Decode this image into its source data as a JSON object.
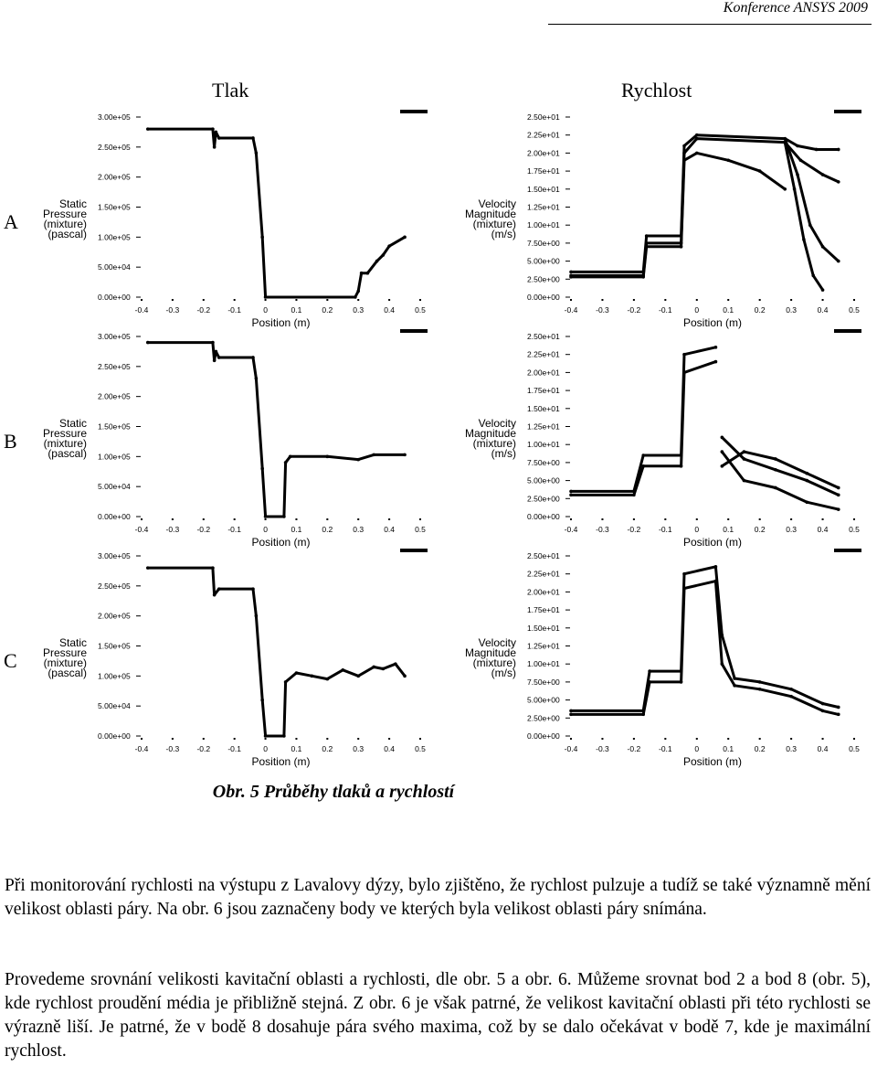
{
  "header": {
    "text": "Konference ANSYS 2009"
  },
  "columns": {
    "left": "Tlak",
    "right": "Rychlost"
  },
  "rows": [
    "A",
    "B",
    "C"
  ],
  "caption": "Obr. 5 Průběhy tlaků a rychlostí",
  "paragraphs": [
    "Při monitorování rychlosti na výstupu z Lavalovy dýzy, bylo zjištěno, že rychlost pulzuje a tudíž se také významně mění velikost oblasti páry. Na obr. 6 jsou zaznačeny body ve kterých byla velikost oblasti páry snímána.",
    "Provedeme srovnání velikosti kavitační oblasti a rychlosti, dle obr. 5 a obr. 6. Můžeme srovnat bod 2 a bod 8 (obr. 5), kde rychlost proudění média je přibližně stejná. Z obr. 6 je však patrné, že velikost kavitační oblasti při této rychlosti se výrazně liší. Je patrné, že v bodě 8 dosahuje pára svého maxima, což by se dalo očekávat v bodě 7, kde je maximální rychlost."
  ],
  "chart_data": [
    {
      "id": "A-pressure",
      "type": "scatter",
      "ylabel": [
        "Static",
        "Pressure",
        "(mixture)",
        "(pascal)"
      ],
      "xlabel": "Position (m)",
      "x_ticks": [
        "-0.4",
        "-0.3",
        "-0.2",
        "-0.1",
        "0",
        "0.1",
        "0.2",
        "0.3",
        "0.4",
        "0.5"
      ],
      "y_ticks": [
        "0.00e+00",
        "5.00e+04",
        "1.00e+05",
        "1.50e+05",
        "2.00e+05",
        "2.50e+05",
        "3.00e+05"
      ],
      "xlim": [
        -0.4,
        0.5
      ],
      "ylim": [
        0,
        300000
      ],
      "series": [
        {
          "points": [
            [
              -0.38,
              280000
            ],
            [
              -0.17,
              280000
            ],
            [
              -0.165,
              250000
            ],
            [
              -0.16,
              275000
            ],
            [
              -0.15,
              265000
            ],
            [
              -0.04,
              265000
            ],
            [
              -0.03,
              240000
            ],
            [
              -0.01,
              100000
            ],
            [
              0.0,
              0
            ],
            [
              0.29,
              0
            ],
            [
              0.3,
              10000
            ],
            [
              0.31,
              40000
            ],
            [
              0.33,
              40000
            ],
            [
              0.36,
              60000
            ],
            [
              0.38,
              70000
            ],
            [
              0.4,
              85000
            ],
            [
              0.45,
              100000
            ]
          ]
        }
      ]
    },
    {
      "id": "A-velocity",
      "type": "scatter",
      "ylabel": [
        "Velocity",
        "Magnitude",
        "(mixture)",
        "(m/s)"
      ],
      "xlabel": "Position (m)",
      "x_ticks": [
        "-0.4",
        "-0.3",
        "-0.2",
        "-0.1",
        "0",
        "0.1",
        "0.2",
        "0.3",
        "0.4",
        "0.5"
      ],
      "y_ticks": [
        "0.00e+00",
        "2.50e+00",
        "5.00e+00",
        "7.50e+00",
        "1.00e+01",
        "1.25e+01",
        "1.50e+01",
        "1.75e+01",
        "2.00e+01",
        "2.25e+01",
        "2.50e+01"
      ],
      "xlim": [
        -0.4,
        0.5
      ],
      "ylim": [
        0,
        25
      ],
      "series": [
        {
          "points": [
            [
              -0.4,
              3.5
            ],
            [
              -0.17,
              3.5
            ],
            [
              -0.16,
              8.5
            ],
            [
              -0.05,
              8.5
            ],
            [
              -0.04,
              21
            ],
            [
              0,
              22.5
            ],
            [
              0.28,
              22
            ],
            [
              0.32,
              21
            ],
            [
              0.38,
              20.5
            ],
            [
              0.45,
              20.5
            ]
          ]
        },
        {
          "points": [
            [
              -0.4,
              3
            ],
            [
              -0.17,
              3
            ],
            [
              -0.16,
              7.5
            ],
            [
              -0.05,
              7.5
            ],
            [
              -0.04,
              20
            ],
            [
              0,
              22
            ],
            [
              0.28,
              21.5
            ],
            [
              0.33,
              19
            ],
            [
              0.4,
              17
            ],
            [
              0.45,
              16
            ]
          ]
        },
        {
          "points": [
            [
              -0.4,
              2.8
            ],
            [
              -0.17,
              2.8
            ],
            [
              -0.16,
              7
            ],
            [
              -0.05,
              7
            ],
            [
              -0.04,
              19
            ],
            [
              0,
              20
            ],
            [
              0.1,
              19
            ],
            [
              0.2,
              17.5
            ],
            [
              0.28,
              15
            ]
          ]
        },
        {
          "points": [
            [
              0.28,
              22
            ],
            [
              0.32,
              17
            ],
            [
              0.36,
              10
            ],
            [
              0.4,
              7
            ],
            [
              0.45,
              5
            ]
          ]
        },
        {
          "points": [
            [
              0.28,
              21.5
            ],
            [
              0.31,
              15
            ],
            [
              0.34,
              8
            ],
            [
              0.37,
              3
            ],
            [
              0.4,
              1
            ]
          ]
        }
      ]
    },
    {
      "id": "B-pressure",
      "type": "scatter",
      "ylabel": [
        "Static",
        "Pressure",
        "(mixture)",
        "(pascal)"
      ],
      "xlabel": "Position (m)",
      "x_ticks": [
        "-0.4",
        "-0.3",
        "-0.2",
        "-0.1",
        "0",
        "0.1",
        "0.2",
        "0.3",
        "0.4",
        "0.5"
      ],
      "y_ticks": [
        "0.00e+00",
        "5.00e+04",
        "1.00e+05",
        "1.50e+05",
        "2.00e+05",
        "2.50e+05",
        "3.00e+05"
      ],
      "xlim": [
        -0.4,
        0.5
      ],
      "ylim": [
        0,
        300000
      ],
      "series": [
        {
          "points": [
            [
              -0.38,
              290000
            ],
            [
              -0.17,
              290000
            ],
            [
              -0.165,
              260000
            ],
            [
              -0.16,
              275000
            ],
            [
              -0.15,
              265000
            ],
            [
              -0.04,
              265000
            ],
            [
              -0.03,
              230000
            ],
            [
              -0.01,
              80000
            ],
            [
              0.0,
              0
            ],
            [
              0.06,
              0
            ],
            [
              0.065,
              90000
            ],
            [
              0.08,
              100000
            ],
            [
              0.2,
              100000
            ],
            [
              0.3,
              95000
            ],
            [
              0.35,
              103000
            ],
            [
              0.45,
              103000
            ]
          ]
        }
      ]
    },
    {
      "id": "B-velocity",
      "type": "scatter",
      "ylabel": [
        "Velocity",
        "Magnitude",
        "(mixture)",
        "(m/s)"
      ],
      "xlabel": "Position (m)",
      "x_ticks": [
        "-0.4",
        "-0.3",
        "-0.2",
        "-0.1",
        "0",
        "0.1",
        "0.2",
        "0.3",
        "0.4",
        "0.5"
      ],
      "y_ticks": [
        "0.00e+00",
        "2.50e+00",
        "5.00e+00",
        "7.50e+00",
        "1.00e+01",
        "1.25e+01",
        "1.50e+01",
        "1.75e+01",
        "2.00e+01",
        "2.25e+01",
        "2.50e+01"
      ],
      "xlim": [
        -0.4,
        0.5
      ],
      "ylim": [
        0,
        25
      ],
      "series": [
        {
          "points": [
            [
              -0.4,
              3.5
            ],
            [
              -0.2,
              3.5
            ],
            [
              -0.17,
              8.5
            ],
            [
              -0.05,
              8.5
            ],
            [
              -0.04,
              22.5
            ],
            [
              0.06,
              23.5
            ]
          ]
        },
        {
          "points": [
            [
              -0.4,
              3
            ],
            [
              -0.2,
              3
            ],
            [
              -0.17,
              7
            ],
            [
              -0.05,
              7
            ],
            [
              -0.04,
              20
            ],
            [
              0.06,
              21.5
            ]
          ]
        },
        {
          "points": [
            [
              0.08,
              11
            ],
            [
              0.15,
              8
            ],
            [
              0.25,
              6.5
            ],
            [
              0.35,
              5
            ],
            [
              0.45,
              3
            ]
          ]
        },
        {
          "points": [
            [
              0.08,
              7
            ],
            [
              0.15,
              9
            ],
            [
              0.25,
              8
            ],
            [
              0.35,
              6
            ],
            [
              0.45,
              4
            ]
          ]
        },
        {
          "points": [
            [
              0.08,
              9
            ],
            [
              0.15,
              5
            ],
            [
              0.25,
              4
            ],
            [
              0.35,
              2
            ],
            [
              0.45,
              1
            ]
          ]
        }
      ]
    },
    {
      "id": "C-pressure",
      "type": "scatter",
      "ylabel": [
        "Static",
        "Pressure",
        "(mixture)",
        "(pascal)"
      ],
      "xlabel": "Position (m)",
      "x_ticks": [
        "-0.4",
        "-0.3",
        "-0.2",
        "-0.1",
        "0",
        "0.1",
        "0.2",
        "0.3",
        "0.4",
        "0.5"
      ],
      "y_ticks": [
        "0.00e+00",
        "5.00e+04",
        "1.00e+05",
        "1.50e+05",
        "2.00e+05",
        "2.50e+05",
        "3.00e+05"
      ],
      "xlim": [
        -0.4,
        0.5
      ],
      "ylim": [
        0,
        300000
      ],
      "series": [
        {
          "points": [
            [
              -0.38,
              280000
            ],
            [
              -0.17,
              280000
            ],
            [
              -0.165,
              235000
            ],
            [
              -0.15,
              245000
            ],
            [
              -0.04,
              245000
            ],
            [
              -0.03,
              200000
            ],
            [
              -0.01,
              60000
            ],
            [
              0.0,
              0
            ],
            [
              0.06,
              0
            ],
            [
              0.065,
              90000
            ],
            [
              0.1,
              105000
            ],
            [
              0.15,
              100000
            ],
            [
              0.2,
              95000
            ],
            [
              0.25,
              110000
            ],
            [
              0.3,
              100000
            ],
            [
              0.35,
              115000
            ],
            [
              0.38,
              112000
            ],
            [
              0.42,
              120000
            ],
            [
              0.45,
              100000
            ]
          ]
        }
      ]
    },
    {
      "id": "C-velocity",
      "type": "scatter",
      "ylabel": [
        "Velocity",
        "Magnitude",
        "(mixture)",
        "(m/s)"
      ],
      "xlabel": "Position (m)",
      "x_ticks": [
        "-0.4",
        "-0.3",
        "-0.2",
        "-0.1",
        "0",
        "0.1",
        "0.2",
        "0.3",
        "0.4",
        "0.5"
      ],
      "y_ticks": [
        "0.00e+00",
        "2.50e+00",
        "5.00e+00",
        "7.50e+00",
        "1.00e+01",
        "1.25e+01",
        "1.50e+01",
        "1.75e+01",
        "2.00e+01",
        "2.25e+01",
        "2.50e+01"
      ],
      "xlim": [
        -0.4,
        0.5
      ],
      "ylim": [
        0,
        25
      ],
      "series": [
        {
          "points": [
            [
              -0.4,
              3.5
            ],
            [
              -0.17,
              3.5
            ],
            [
              -0.15,
              9
            ],
            [
              -0.05,
              9
            ],
            [
              -0.04,
              22.5
            ],
            [
              0.06,
              23.5
            ],
            [
              0.08,
              14
            ],
            [
              0.12,
              8
            ],
            [
              0.2,
              7.5
            ],
            [
              0.3,
              6.5
            ],
            [
              0.4,
              4.5
            ],
            [
              0.45,
              4
            ]
          ]
        },
        {
          "points": [
            [
              -0.4,
              3
            ],
            [
              -0.17,
              3
            ],
            [
              -0.15,
              7.5
            ],
            [
              -0.05,
              7.5
            ],
            [
              -0.04,
              20.5
            ],
            [
              0.06,
              21.5
            ],
            [
              0.08,
              10
            ],
            [
              0.12,
              7
            ],
            [
              0.2,
              6.5
            ],
            [
              0.3,
              5.5
            ],
            [
              0.4,
              3.5
            ],
            [
              0.45,
              3
            ]
          ]
        }
      ]
    }
  ]
}
